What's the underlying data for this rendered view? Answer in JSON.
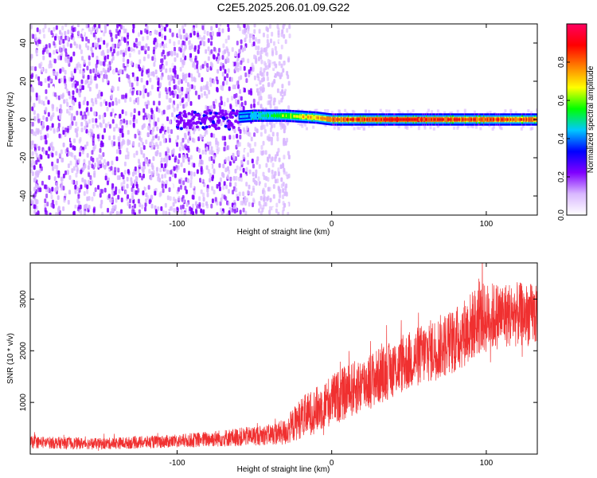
{
  "chart_data": [
    {
      "type": "heatmap",
      "title": "C2E5.2025.206.01.09.G22",
      "xlabel": "Height of straight line (km)",
      "ylabel": "Frequency (Hz)",
      "xlim": [
        -195,
        133
      ],
      "ylim": [
        -50,
        50
      ],
      "x_ticks": [
        -100,
        0,
        100
      ],
      "y_ticks": [
        -40,
        -20,
        0,
        20,
        40
      ],
      "colorbar": {
        "label": "Normalized spectral amplitude",
        "range": [
          0,
          1
        ],
        "ticks": [
          "0.0",
          "0.2",
          "0.4",
          "0.6",
          "0.8"
        ],
        "colors": [
          "#ffffff",
          "#d9b8ff",
          "#8000ff",
          "#0000ff",
          "#00c8ff",
          "#00ff00",
          "#ffff00",
          "#ff8000",
          "#ff0000",
          "#ff0060"
        ]
      },
      "description_points": {
        "noise_region_x": [
          -195,
          -35
        ],
        "signal_track": [
          {
            "x": -85,
            "f": 0,
            "amp": 0.25
          },
          {
            "x": -50,
            "f": 2,
            "amp": 0.45
          },
          {
            "x": -30,
            "f": 2,
            "amp": 0.6
          },
          {
            "x": -10,
            "f": 1,
            "amp": 0.75
          },
          {
            "x": 0,
            "f": 0,
            "amp": 0.8
          },
          {
            "x": 40,
            "f": 0,
            "amp": 0.9
          },
          {
            "x": 80,
            "f": 0,
            "amp": 0.85
          },
          {
            "x": 133,
            "f": 0,
            "amp": 0.8
          }
        ]
      }
    },
    {
      "type": "line",
      "xlabel": "Height of straight line (km)",
      "ylabel": "SNR (10 * v/v)",
      "xlim": [
        -195,
        133
      ],
      "ylim": [
        0,
        3700
      ],
      "x_ticks": [
        -100,
        0,
        100
      ],
      "y_ticks": [
        1000,
        2000,
        3000
      ],
      "color": "#f03030",
      "trend": {
        "x": [
          -195,
          -150,
          -100,
          -60,
          -40,
          -30,
          -20,
          -10,
          0,
          20,
          40,
          60,
          80,
          95,
          110,
          133
        ],
        "mean": [
          230,
          200,
          250,
          330,
          380,
          420,
          700,
          850,
          1050,
          1350,
          1650,
          1950,
          2200,
          2600,
          2700,
          2700
        ],
        "spread": [
          120,
          110,
          130,
          180,
          200,
          260,
          400,
          450,
          500,
          550,
          550,
          600,
          650,
          700,
          650,
          600
        ]
      }
    }
  ]
}
